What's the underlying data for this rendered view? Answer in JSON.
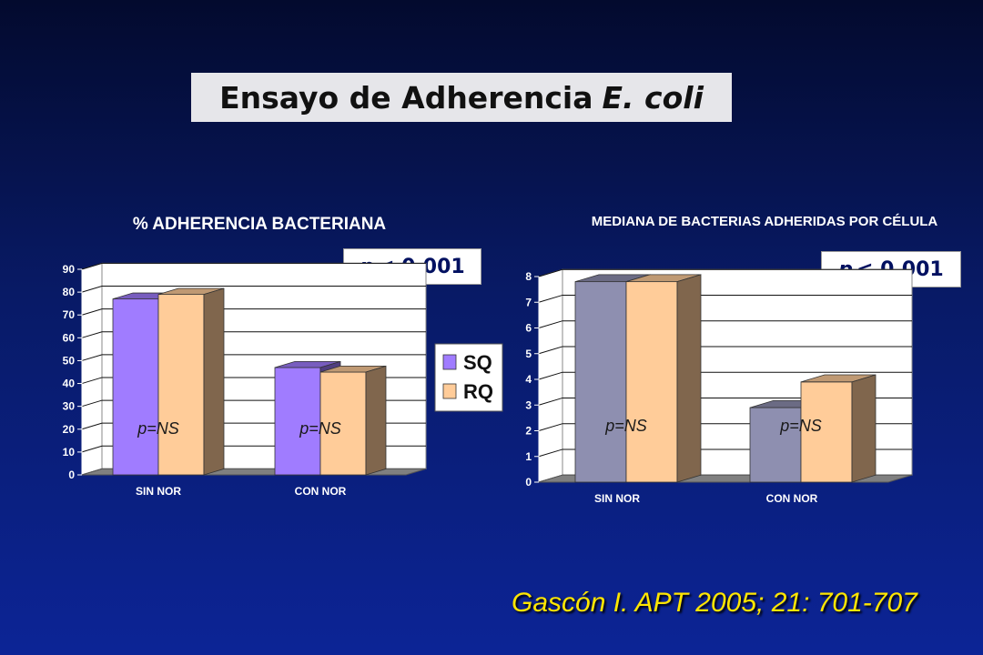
{
  "slide": {
    "title_main": "Ensayo de Adherencia",
    "title_italic": "E. coli",
    "citation": "Gascón I. APT 2005; 21: 701-707"
  },
  "colors": {
    "sq_left": "#a07cff",
    "rq_left": "#ffcc99",
    "sq_right": "#8e8fb0",
    "rq_right": "#ffcc99"
  },
  "chart_data": [
    {
      "type": "bar",
      "title": "% ADHERENCIA BACTERIANA",
      "categories": [
        "SIN NOR",
        "CON NOR"
      ],
      "series": [
        {
          "name": "SQ",
          "values": [
            77,
            47
          ]
        },
        {
          "name": "RQ",
          "values": [
            79,
            45
          ]
        }
      ],
      "ylim": [
        0,
        90
      ],
      "yticks": [
        0,
        10,
        20,
        30,
        40,
        50,
        60,
        70,
        80,
        90
      ],
      "grid": true,
      "legend": "right",
      "annotations": [
        "p=NS",
        "p=NS"
      ],
      "p_value_label": "p",
      "p_value_text": "< 0,001"
    },
    {
      "type": "bar",
      "title": "MEDIANA DE BACTERIAS ADHERIDAS POR CÉLULA",
      "categories": [
        "SIN NOR",
        "CON NOR"
      ],
      "series": [
        {
          "values": [
            7.8,
            2.9
          ]
        },
        {
          "values": [
            7.8,
            3.9
          ]
        }
      ],
      "ylim": [
        0,
        8
      ],
      "yticks": [
        0,
        1,
        2,
        3,
        4,
        5,
        6,
        7,
        8
      ],
      "grid": true,
      "annotations": [
        "p=NS",
        "p=NS"
      ],
      "p_value_label": "p",
      "p_value_text": "< 0,001"
    }
  ]
}
